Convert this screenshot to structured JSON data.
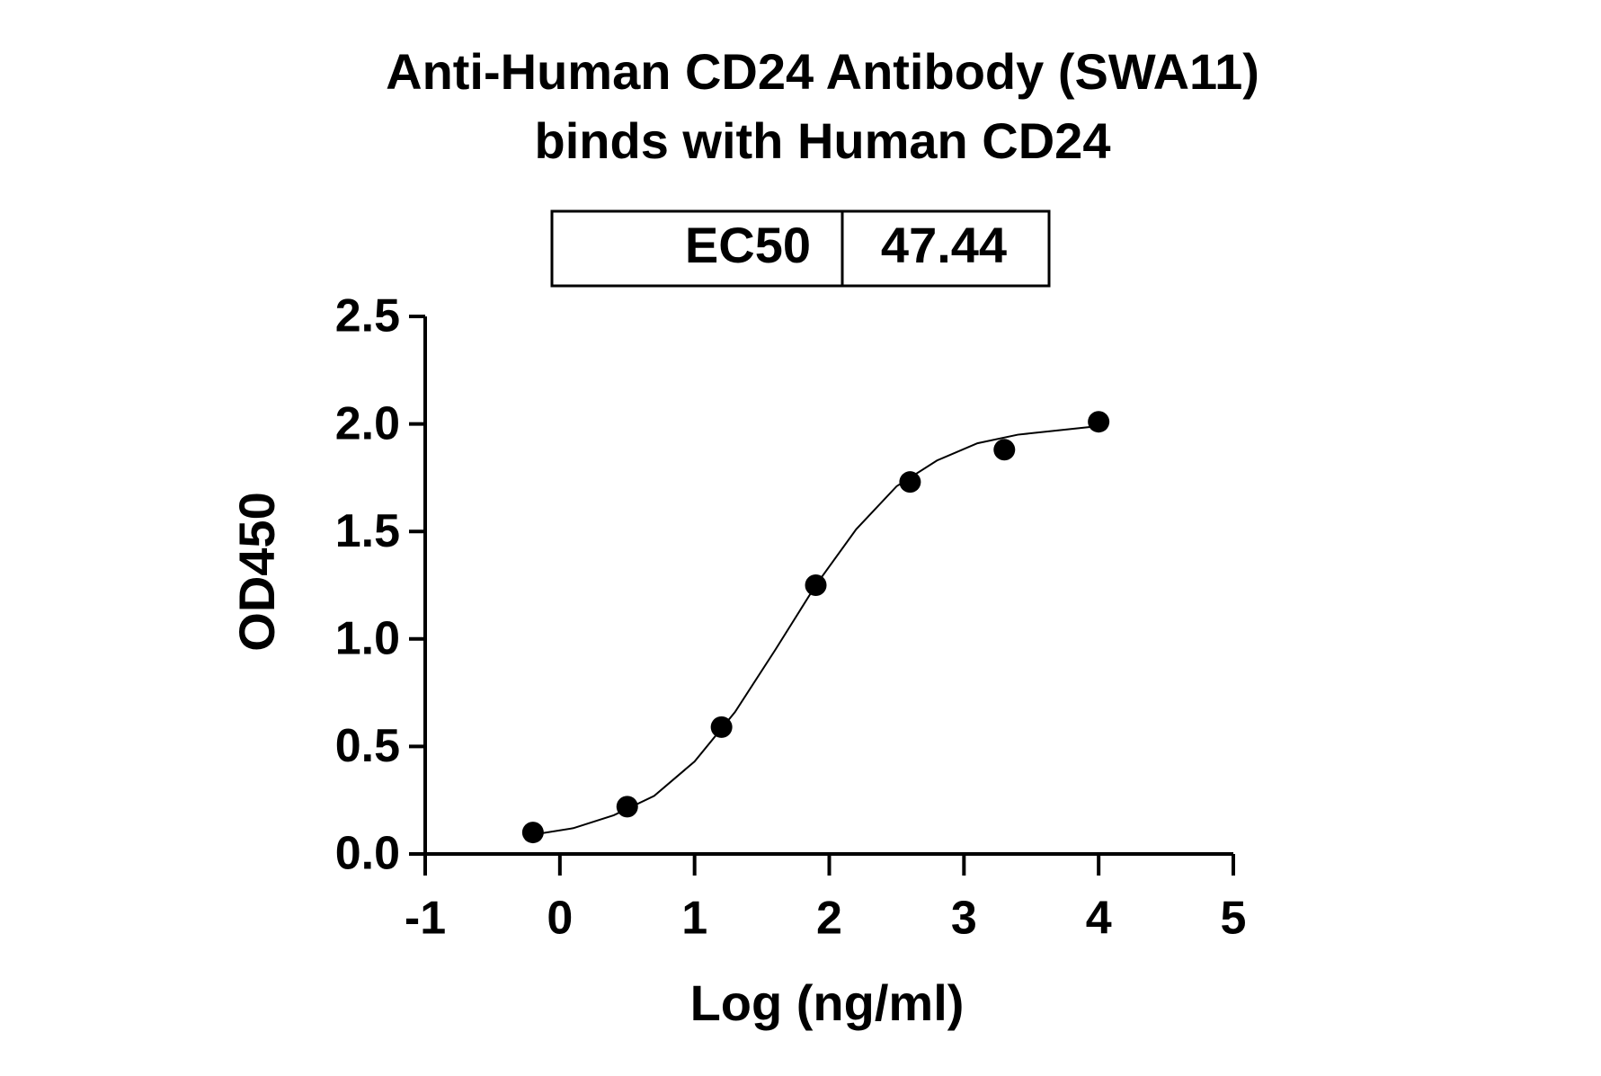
{
  "chart_data": {
    "type": "scatter",
    "title": [
      "Anti-Human CD24 Antibody (SWA11)",
      "binds with Human CD24"
    ],
    "table": {
      "label": "EC50",
      "value": 47.44
    },
    "xlabel": "Log (ng/ml)",
    "ylabel": "OD450",
    "xlim": [
      -1,
      5
    ],
    "xticks": [
      -1,
      0,
      1,
      2,
      3,
      4,
      5
    ],
    "ylim": [
      0,
      2.5
    ],
    "yticks": [
      {
        "value": 0,
        "label": "0.0"
      },
      0.5,
      {
        "value": 1,
        "label": "1.0"
      },
      1.5,
      {
        "value": 2,
        "label": "2.0"
      },
      2.5
    ],
    "color": "#000000",
    "x": [
      -0.2,
      0.5,
      1.2,
      1.9,
      2.6,
      3.3,
      4.0
    ],
    "values": [
      0.1,
      0.22,
      0.59,
      1.25,
      1.73,
      1.88,
      2.01
    ],
    "fit": {
      "x": [
        -0.2,
        0.1,
        0.4,
        0.7,
        1.0,
        1.3,
        1.6,
        1.9,
        2.2,
        2.5,
        2.8,
        3.1,
        3.4,
        3.7,
        4.0
      ],
      "values": [
        0.09,
        0.12,
        0.18,
        0.27,
        0.43,
        0.66,
        0.95,
        1.25,
        1.51,
        1.71,
        1.83,
        1.91,
        1.95,
        1.97,
        1.99
      ]
    }
  }
}
